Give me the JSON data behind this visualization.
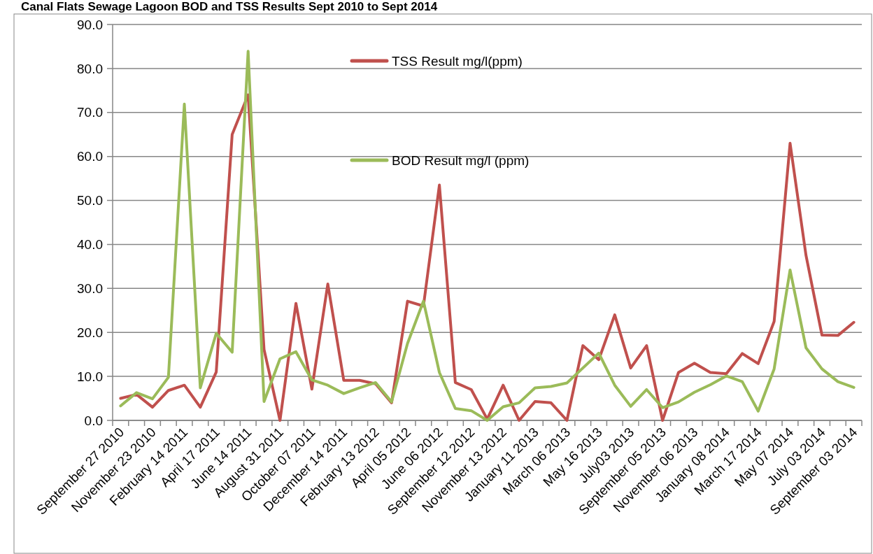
{
  "chart_data": {
    "type": "line",
    "title": "Canal Flats Sewage Lagoon BOD and TSS Results Sept 2010 to Sept 2014",
    "categories": [
      "September 27 2010",
      null,
      "November 23 2010",
      null,
      "February 14 2011",
      null,
      "April 17 2011",
      null,
      "June 14 2011",
      null,
      "August 31 2011",
      null,
      "October 07 2011",
      null,
      "December 14 2011",
      null,
      "February 13 2012",
      null,
      "April 05 2012",
      null,
      "June 06 2012",
      null,
      "September 12 2012",
      null,
      "November 13 2012",
      null,
      "January 11 2013",
      null,
      "March 06 2013",
      null,
      "May 16 2013",
      null,
      "July03 2013",
      null,
      "September 05 2013",
      null,
      "November 06 2013",
      null,
      "January 08 2014",
      null,
      "March 17 2014",
      null,
      "May 07 2014",
      null,
      "July 03 2014",
      null,
      "September 03 2014"
    ],
    "series": [
      {
        "name": "TSS Result mg/l(ppm)",
        "color": "#c0504d",
        "values": [
          5.0,
          5.9,
          3.0,
          6.8,
          8.0,
          3.0,
          11.0,
          65.0,
          74.0,
          16.1,
          0,
          26.6,
          7.1,
          31.0,
          9.1,
          9.1,
          8.3,
          4.0,
          27.1,
          26.0,
          53.5,
          8.6,
          7.0,
          0.3,
          8.0,
          0,
          4.3,
          4.0,
          0,
          17.0,
          13.8,
          24.0,
          11.9,
          17.0,
          0,
          10.9,
          13.0,
          10.9,
          10.6,
          15.2,
          12.9,
          22.5,
          63.0,
          37.5,
          19.4,
          19.3,
          22.3
        ]
      },
      {
        "name": "BOD Result mg/l (ppm)",
        "color": "#9bbb59",
        "values": [
          3.3,
          6.3,
          4.9,
          9.8,
          71.9,
          7.4,
          19.8,
          15.5,
          83.9,
          4.3,
          14.0,
          15.6,
          9.2,
          8.0,
          6.1,
          7.4,
          8.6,
          4.2,
          17.5,
          27.1,
          10.9,
          2.7,
          2.2,
          0,
          3.1,
          4.0,
          7.4,
          7.7,
          8.5,
          11.9,
          15.3,
          8.0,
          3.2,
          7.0,
          2.9,
          4.2,
          6.4,
          8.1,
          10.1,
          8.8,
          2.1,
          11.7,
          34.2,
          16.5,
          11.7,
          8.8,
          7.5
        ]
      }
    ],
    "ylim": [
      0,
      90
    ],
    "yticks": [
      {
        "value": 0,
        "label": "0.0"
      },
      {
        "value": 10,
        "label": "10.0"
      },
      {
        "value": 20,
        "label": "20.0"
      },
      {
        "value": 30,
        "label": "30.0"
      },
      {
        "value": 40,
        "label": "40.0"
      },
      {
        "value": 50,
        "label": "50.0"
      },
      {
        "value": 60,
        "label": "60.0"
      },
      {
        "value": 70,
        "label": "70.0"
      },
      {
        "value": 80,
        "label": "80.0"
      },
      {
        "value": 90,
        "label": "90.0"
      }
    ],
    "grid": "y",
    "legend": "top",
    "marker": "none",
    "line_style": "solid"
  }
}
